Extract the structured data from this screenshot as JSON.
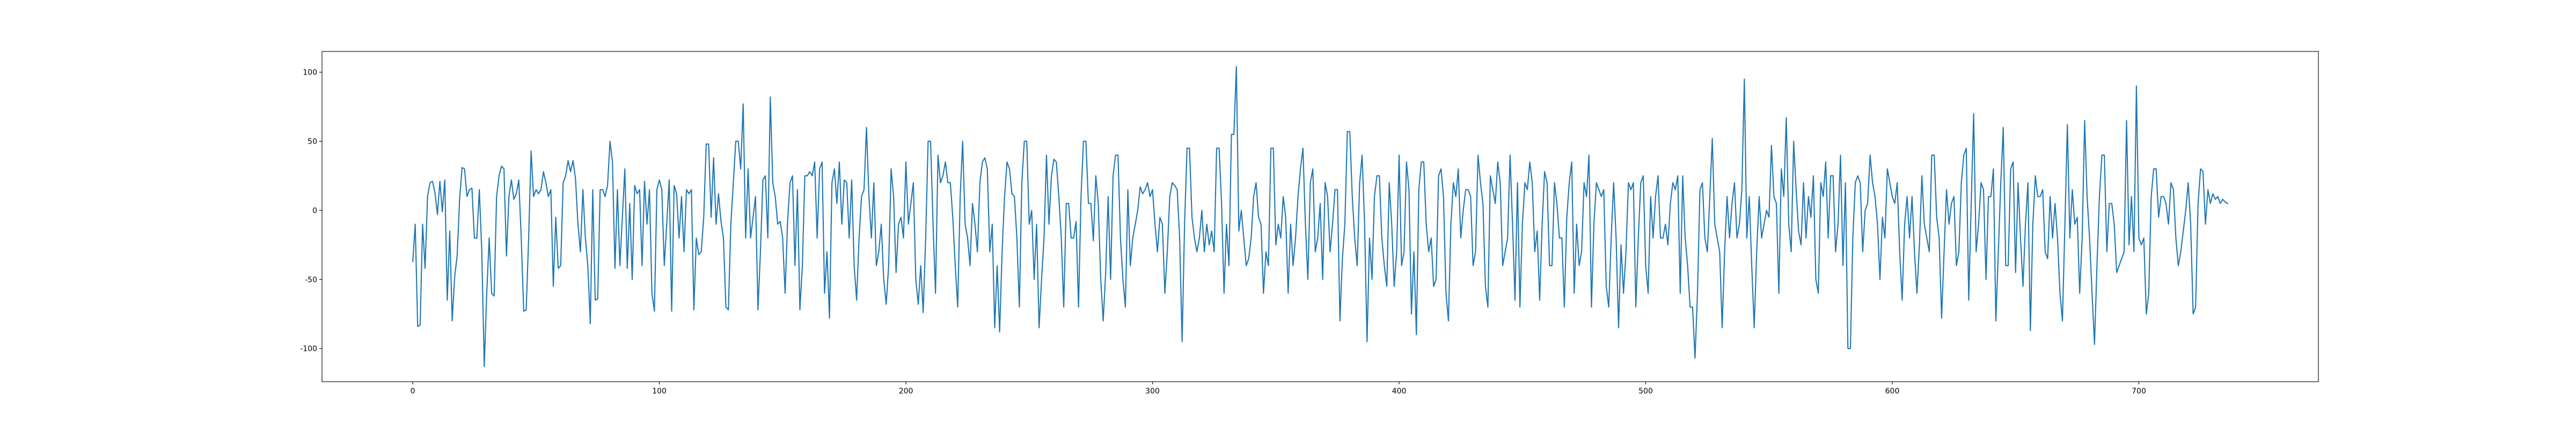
{
  "chart_data": {
    "type": "line",
    "x": [
      0,
      1,
      2,
      3,
      4,
      5,
      6,
      7,
      8,
      9,
      10,
      11,
      12,
      13,
      14,
      15,
      16,
      17,
      18,
      19,
      20,
      21,
      22,
      23,
      24,
      25,
      26,
      27,
      28,
      29,
      30,
      31,
      32,
      33,
      34,
      35,
      36,
      37,
      38,
      39,
      40,
      41,
      42,
      43,
      44,
      45,
      46,
      47,
      48,
      49,
      50,
      51,
      52,
      53,
      54,
      55,
      56,
      57,
      58,
      59,
      60,
      61,
      62,
      63,
      64,
      65,
      66,
      67,
      68,
      69,
      70,
      71,
      72,
      73,
      74,
      75,
      76,
      77,
      78,
      79,
      80,
      81,
      82,
      83,
      84,
      85,
      86,
      87,
      88,
      89,
      90,
      91,
      92,
      93,
      94,
      95,
      96,
      97,
      98,
      99,
      100,
      101,
      102,
      103,
      104,
      105,
      106,
      107,
      108,
      109,
      110,
      111,
      112,
      113,
      114,
      115,
      116,
      117,
      118,
      119,
      120,
      121,
      122,
      123,
      124,
      125,
      126,
      127,
      128,
      129,
      130,
      131,
      132,
      133,
      134,
      135,
      136,
      137,
      138,
      139,
      140,
      141,
      142,
      143,
      144,
      145,
      146,
      147,
      148,
      149,
      150,
      151,
      152,
      153,
      154,
      155,
      156,
      157,
      158,
      159,
      160,
      161,
      162,
      163,
      164,
      165,
      166,
      167,
      168,
      169,
      170,
      171,
      172,
      173,
      174,
      175,
      176,
      177,
      178,
      179,
      180,
      181,
      182,
      183,
      184,
      185,
      186,
      187,
      188,
      189,
      190,
      191,
      192,
      193,
      194,
      195,
      196,
      197,
      198,
      199,
      200,
      201,
      202,
      203,
      204,
      205,
      206,
      207,
      208,
      209,
      210,
      211,
      212,
      213,
      214,
      215,
      216,
      217,
      218,
      219,
      220,
      221,
      222,
      223,
      224,
      225,
      226,
      227,
      228,
      229,
      230,
      231,
      232,
      233,
      234,
      235,
      236,
      237,
      238,
      239,
      240,
      241,
      242,
      243,
      244,
      245,
      246,
      247,
      248,
      249,
      250,
      251,
      252,
      253,
      254,
      255,
      256,
      257,
      258,
      259,
      260,
      261,
      262,
      263,
      264,
      265,
      266,
      267,
      268,
      269,
      270,
      271,
      272,
      273,
      274,
      275,
      276,
      277,
      278,
      279,
      280,
      281,
      282,
      283,
      284,
      285,
      286,
      287,
      288,
      289,
      290,
      291,
      292,
      293,
      294,
      295,
      296,
      297,
      298,
      299,
      300,
      301,
      302,
      303,
      304,
      305,
      306,
      307,
      308,
      309,
      310,
      311,
      312,
      313,
      314,
      315,
      316,
      317,
      318,
      319,
      320,
      321,
      322,
      323,
      324,
      325,
      326,
      327,
      328,
      329,
      330,
      331,
      332,
      333,
      334,
      335,
      336,
      337,
      338,
      339,
      340,
      341,
      342,
      343,
      344,
      345,
      346,
      347,
      348,
      349,
      350,
      351,
      352,
      353,
      354,
      355,
      356,
      357,
      358,
      359,
      360,
      361,
      362,
      363,
      364,
      365,
      366,
      367,
      368,
      369,
      370,
      371,
      372,
      373,
      374,
      375,
      376,
      377,
      378,
      379,
      380,
      381,
      382,
      383,
      384,
      385,
      386,
      387,
      388,
      389,
      390,
      391,
      392,
      393,
      394,
      395,
      396,
      397,
      398,
      399,
      400,
      401,
      402,
      403,
      404,
      405,
      406,
      407,
      408,
      409,
      410,
      411,
      412,
      413,
      414,
      415,
      416,
      417,
      418,
      419,
      420,
      421,
      422,
      423,
      424,
      425,
      426,
      427,
      428,
      429,
      430,
      431,
      432,
      433,
      434,
      435,
      436,
      437,
      438,
      439,
      440,
      441,
      442,
      443,
      444,
      445,
      446,
      447,
      448,
      449,
      450,
      451,
      452,
      453,
      454,
      455,
      456,
      457,
      458,
      459,
      460,
      461,
      462,
      463,
      464,
      465,
      466,
      467,
      468,
      469,
      470,
      471,
      472,
      473,
      474,
      475,
      476,
      477,
      478,
      479,
      480,
      481,
      482,
      483,
      484,
      485,
      486,
      487,
      488,
      489,
      490,
      491,
      492,
      493,
      494,
      495,
      496,
      497,
      498,
      499,
      500,
      501,
      502,
      503,
      504,
      505,
      506,
      507,
      508,
      509,
      510,
      511,
      512,
      513,
      514,
      515,
      516,
      517,
      518,
      519,
      520,
      521,
      522,
      523,
      524,
      525,
      526,
      527,
      528,
      529,
      530,
      531,
      532,
      533,
      534,
      535,
      536,
      537,
      538,
      539,
      540,
      541,
      542,
      543,
      544,
      545,
      546,
      547,
      548,
      549,
      550,
      551,
      552,
      553,
      554,
      555,
      556,
      557,
      558,
      559,
      560,
      561,
      562,
      563,
      564,
      565,
      566,
      567,
      568,
      569,
      570,
      571,
      572,
      573,
      574,
      575,
      576,
      577,
      578,
      579,
      580,
      581,
      582,
      583,
      584,
      585,
      586,
      587,
      588,
      589,
      590,
      591,
      592,
      593,
      594,
      595,
      596,
      597,
      598,
      599,
      600,
      601,
      602,
      603,
      604,
      605,
      606,
      607,
      608,
      609,
      610,
      611,
      612,
      613,
      614,
      615,
      616,
      617,
      618,
      619,
      620,
      621,
      622,
      623,
      624,
      625,
      626,
      627,
      628,
      629,
      630,
      631,
      632,
      633,
      634,
      635,
      636,
      637,
      638,
      639,
      640,
      641,
      642,
      643,
      644,
      645,
      646,
      647,
      648,
      649,
      650,
      651,
      652,
      653,
      654,
      655,
      656,
      657,
      658,
      659,
      660,
      661,
      662,
      663,
      664,
      665,
      666,
      667,
      668,
      669,
      670,
      671,
      672,
      673,
      674,
      675,
      676,
      677,
      678,
      679,
      680,
      681,
      682,
      683,
      684,
      685,
      686,
      687,
      688,
      689,
      690,
      691,
      692,
      693,
      694,
      695,
      696,
      697,
      698,
      699,
      700,
      701,
      702,
      703,
      704,
      705,
      706,
      707,
      708,
      709,
      710,
      711,
      712,
      713,
      714,
      715,
      716,
      717,
      718,
      719,
      720,
      721,
      722,
      723,
      724,
      725,
      726,
      727,
      728,
      729,
      730,
      731,
      732,
      733,
      734,
      735,
      736
    ],
    "series": [
      {
        "color": "#1f77b4",
        "values": [
          -37,
          -10,
          -84,
          -83,
          -10,
          -42,
          10,
          20,
          21,
          13,
          -3,
          21,
          -1,
          22,
          -65,
          -15,
          -80,
          -48,
          -33,
          8,
          31,
          30,
          10,
          15,
          16,
          -20,
          -20,
          15,
          -30,
          -113,
          -60,
          -20,
          -60,
          -62,
          10,
          25,
          32,
          30,
          -33,
          10,
          22,
          8,
          12,
          22,
          -20,
          -73,
          -72,
          -20,
          43,
          10,
          15,
          12,
          15,
          28,
          20,
          10,
          15,
          -55,
          -5,
          -42,
          -40,
          20,
          25,
          36,
          28,
          36,
          23,
          -10,
          -30,
          15,
          -20,
          -40,
          -82,
          15,
          -65,
          -64,
          15,
          15,
          10,
          18,
          50,
          35,
          -42,
          15,
          -40,
          -5,
          30,
          -42,
          5,
          -50,
          18,
          12,
          15,
          -40,
          21,
          -10,
          15,
          -60,
          -73,
          15,
          22,
          15,
          -40,
          -10,
          22,
          -73,
          18,
          12,
          -20,
          10,
          -30,
          15,
          12,
          15,
          -72,
          -20,
          -32,
          -30,
          -5,
          48,
          48,
          -5,
          38,
          -10,
          12,
          -8,
          -20,
          -70,
          -72,
          -10,
          20,
          50,
          50,
          30,
          77,
          -20,
          30,
          -20,
          -5,
          10,
          -72,
          -30,
          22,
          25,
          -20,
          82,
          20,
          10,
          -10,
          -8,
          -20,
          -60,
          -8,
          20,
          25,
          -40,
          15,
          -72,
          -40,
          25,
          25,
          28,
          25,
          35,
          -20,
          30,
          35,
          -60,
          -30,
          -78,
          20,
          30,
          5,
          35,
          -10,
          22,
          20,
          -20,
          22,
          -40,
          -65,
          -20,
          10,
          15,
          60,
          10,
          -20,
          20,
          -40,
          -30,
          -10,
          -50,
          -68,
          -40,
          30,
          10,
          -45,
          -10,
          -5,
          -20,
          35,
          -10,
          5,
          20,
          -50,
          -68,
          -40,
          -74,
          -20,
          50,
          50,
          -10,
          -60,
          40,
          20,
          25,
          35,
          20,
          20,
          -5,
          -40,
          -70,
          10,
          50,
          -10,
          -20,
          -40,
          5,
          -10,
          -30,
          20,
          35,
          38,
          30,
          -30,
          -10,
          -85,
          -40,
          -88,
          -30,
          10,
          35,
          30,
          12,
          10,
          -20,
          -70,
          20,
          50,
          50,
          -10,
          0,
          -50,
          -10,
          -85,
          -50,
          -20,
          40,
          -10,
          25,
          37,
          35,
          10,
          -20,
          -70,
          5,
          5,
          -20,
          -20,
          -8,
          -70,
          10,
          50,
          50,
          5,
          5,
          -22,
          25,
          5,
          -50,
          -80,
          -45,
          10,
          -50,
          25,
          40,
          40,
          -20,
          -50,
          -70,
          15,
          -40,
          -20,
          -10,
          0,
          17,
          12,
          15,
          20,
          10,
          15,
          -10,
          -30,
          -5,
          -10,
          -60,
          -30,
          10,
          20,
          18,
          15,
          -20,
          -95,
          -10,
          45,
          45,
          -5,
          -20,
          -30,
          -20,
          0,
          -30,
          -10,
          -25,
          -15,
          -30,
          45,
          45,
          5,
          -60,
          -10,
          -40,
          55,
          55,
          104,
          -15,
          0,
          -20,
          -40,
          -35,
          -20,
          10,
          20,
          -5,
          -10,
          -60,
          -30,
          -40,
          45,
          45,
          -25,
          -10,
          -20,
          10,
          -5,
          -60,
          -10,
          -40,
          -20,
          10,
          30,
          45,
          -10,
          -50,
          20,
          30,
          -30,
          -20,
          5,
          -50,
          20,
          10,
          -30,
          -10,
          15,
          15,
          -80,
          -35,
          -10,
          57,
          57,
          10,
          -20,
          -40,
          20,
          40,
          -10,
          -95,
          -20,
          -50,
          10,
          25,
          25,
          -20,
          -40,
          -55,
          20,
          -10,
          -55,
          -30,
          40,
          -40,
          -30,
          35,
          15,
          -75,
          -30,
          -90,
          15,
          35,
          35,
          -10,
          -30,
          -20,
          -55,
          -50,
          25,
          30,
          10,
          -60,
          -80,
          -10,
          20,
          10,
          30,
          -20,
          0,
          15,
          15,
          10,
          -40,
          -30,
          40,
          20,
          5,
          -55,
          -70,
          25,
          15,
          5,
          35,
          20,
          -40,
          -30,
          -20,
          40,
          -10,
          -65,
          20,
          -70,
          -10,
          20,
          15,
          35,
          20,
          -30,
          -15,
          -65,
          -10,
          28,
          20,
          -40,
          -40,
          20,
          5,
          -20,
          -20,
          -70,
          -5,
          20,
          35,
          -60,
          -10,
          -40,
          -30,
          20,
          10,
          40,
          -70,
          -10,
          20,
          15,
          10,
          15,
          -55,
          -70,
          -20,
          20,
          -20,
          -85,
          -25,
          -60,
          -30,
          20,
          15,
          20,
          -70,
          -20,
          20,
          25,
          -40,
          -60,
          10,
          -20,
          10,
          25,
          -20,
          -20,
          -10,
          -25,
          5,
          20,
          15,
          25,
          -60,
          25,
          -20,
          -40,
          -70,
          -70,
          -107,
          -60,
          15,
          20,
          -20,
          -30,
          10,
          52,
          -10,
          -20,
          -30,
          -85,
          -30,
          10,
          -20,
          5,
          20,
          -20,
          -10,
          15,
          95,
          -20,
          10,
          -40,
          -85,
          -30,
          10,
          -20,
          -10,
          0,
          -5,
          47,
          10,
          5,
          -60,
          30,
          10,
          67,
          -10,
          -30,
          50,
          15,
          -15,
          -25,
          20,
          -20,
          10,
          -5,
          25,
          -50,
          -60,
          20,
          10,
          35,
          -20,
          25,
          25,
          -30,
          -10,
          40,
          -40,
          20,
          -100,
          -100,
          -20,
          20,
          25,
          20,
          -30,
          0,
          5,
          40,
          20,
          10,
          -10,
          -50,
          -5,
          -20,
          30,
          20,
          10,
          5,
          20,
          -30,
          -65,
          -10,
          10,
          -20,
          10,
          -30,
          -60,
          -25,
          25,
          -10,
          -20,
          -30,
          40,
          40,
          -5,
          -20,
          -78,
          -30,
          15,
          -10,
          5,
          10,
          -40,
          -30,
          20,
          40,
          45,
          -65,
          5,
          70,
          -30,
          -10,
          20,
          15,
          -50,
          10,
          10,
          30,
          -80,
          -30,
          20,
          60,
          -40,
          -40,
          30,
          35,
          -45,
          20,
          -20,
          -55,
          -10,
          20,
          -87,
          -10,
          25,
          10,
          10,
          15,
          -30,
          -35,
          10,
          -20,
          5,
          -20,
          -60,
          -80,
          -10,
          62,
          -20,
          15,
          -10,
          -5,
          -60,
          -20,
          65,
          10,
          -20,
          -60,
          -97,
          -40,
          10,
          40,
          40,
          -30,
          5,
          5,
          -10,
          -45,
          -40,
          -35,
          -30,
          65,
          -25,
          10,
          -30,
          90,
          -20,
          -25,
          -20,
          -75,
          -60,
          10,
          30,
          30,
          -5,
          10,
          10,
          5,
          -10,
          20,
          15,
          -20,
          -40,
          -30,
          -15,
          0,
          20,
          -10,
          -75,
          -70,
          5,
          30,
          28,
          -10,
          15,
          5,
          12,
          8,
          10,
          5,
          8,
          6,
          5
        ]
      }
    ],
    "xlim": [
      -36.8,
      772.8
    ],
    "ylim": [
      -124,
      115
    ],
    "xticks": [
      0,
      100,
      200,
      300,
      400,
      500,
      600,
      700
    ],
    "yticks": [
      -100,
      -50,
      0,
      50,
      100
    ]
  }
}
